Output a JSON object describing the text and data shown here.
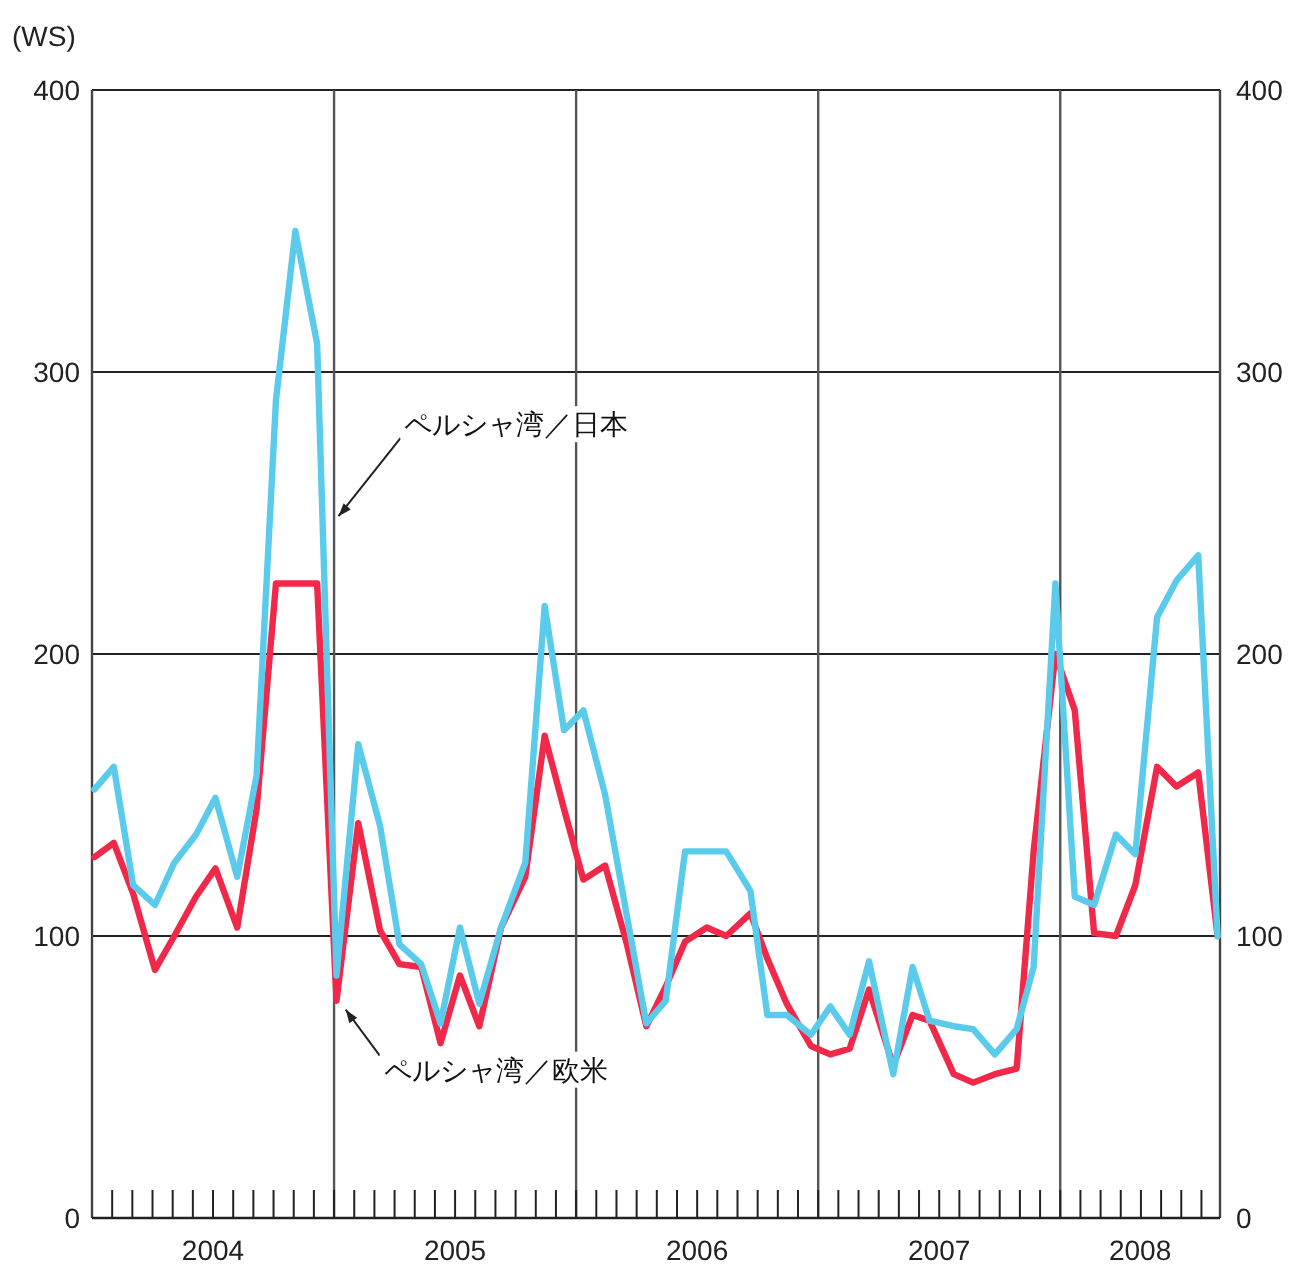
{
  "chart_data": {
    "type": "line",
    "ylabel": "(WS)",
    "x": [
      2004.01,
      2004.09,
      2004.17,
      2004.26,
      2004.34,
      2004.43,
      2004.51,
      2004.6,
      2004.68,
      2004.76,
      2004.84,
      2004.93,
      2005.01,
      2005.1,
      2005.19,
      2005.27,
      2005.36,
      2005.44,
      2005.52,
      2005.6,
      2005.69,
      2005.79,
      2005.87,
      2005.95,
      2006.03,
      2006.12,
      2006.21,
      2006.29,
      2006.37,
      2006.45,
      2006.54,
      2006.62,
      2006.72,
      2006.79,
      2006.87,
      2006.97,
      2007.05,
      2007.13,
      2007.21,
      2007.31,
      2007.39,
      2007.46,
      2007.56,
      2007.64,
      2007.73,
      2007.82,
      2007.89,
      2007.98,
      2008.06,
      2008.14,
      2008.23,
      2008.31,
      2008.4,
      2008.48,
      2008.57,
      2008.65
    ],
    "series": [
      {
        "color": "#f0284a",
        "values": [
          128,
          133,
          115,
          88,
          100,
          114,
          124,
          103,
          145,
          225,
          225,
          225,
          77,
          140,
          102,
          90,
          89,
          62,
          86,
          68,
          103,
          121,
          171,
          145,
          120,
          125,
          97,
          68,
          82,
          98,
          103,
          100,
          108,
          92,
          76,
          61,
          58,
          60,
          81,
          54,
          72,
          70,
          51,
          48,
          51,
          53,
          130,
          200,
          180,
          101,
          100,
          118,
          160,
          153,
          158,
          100
        ]
      },
      {
        "color": "#5bcbeb",
        "values": [
          152,
          160,
          118,
          111,
          126,
          136,
          149,
          121,
          157,
          290,
          350,
          310,
          86,
          168,
          139,
          97,
          90,
          69,
          103,
          76,
          103,
          126,
          217,
          173,
          180,
          150,
          107,
          69,
          77,
          130,
          130,
          130,
          116,
          72,
          72,
          65,
          75,
          65,
          91,
          51,
          89,
          70,
          68,
          67,
          58,
          67,
          89,
          225,
          114,
          111,
          136,
          129,
          213,
          226,
          235,
          100
        ]
      }
    ],
    "xlim": [
      2004,
      2008.66
    ],
    "xticks": [
      {
        "value": 2004.5,
        "label": "2004"
      },
      {
        "value": 2005.5,
        "label": "2005"
      },
      {
        "value": 2006.5,
        "label": "2006"
      },
      {
        "value": 2007.5,
        "label": "2007"
      },
      {
        "value": 2008.33,
        "label": "2008"
      }
    ],
    "ylim": [
      0,
      400
    ],
    "yticks": [
      0,
      100,
      200,
      300,
      400
    ],
    "y2lim": [
      0,
      400
    ],
    "y2ticks": [
      0,
      100,
      200,
      300,
      400
    ],
    "ref_lines": [
      {
        "axis": "x",
        "value": 2005,
        "color": "#555555"
      },
      {
        "axis": "x",
        "value": 2006,
        "color": "#555555"
      },
      {
        "axis": "x",
        "value": 2007,
        "color": "#555555"
      },
      {
        "axis": "x",
        "value": 2008,
        "color": "#555555"
      }
    ],
    "grid": "y",
    "marker": "none",
    "line_style": "solid",
    "annotations": [
      {
        "text": "ペルシャ湾／日本",
        "x": 2005.01,
        "y": 251
      },
      {
        "text": "ペルシャ湾／欧米",
        "x": 2005.04,
        "y": 76
      }
    ]
  }
}
